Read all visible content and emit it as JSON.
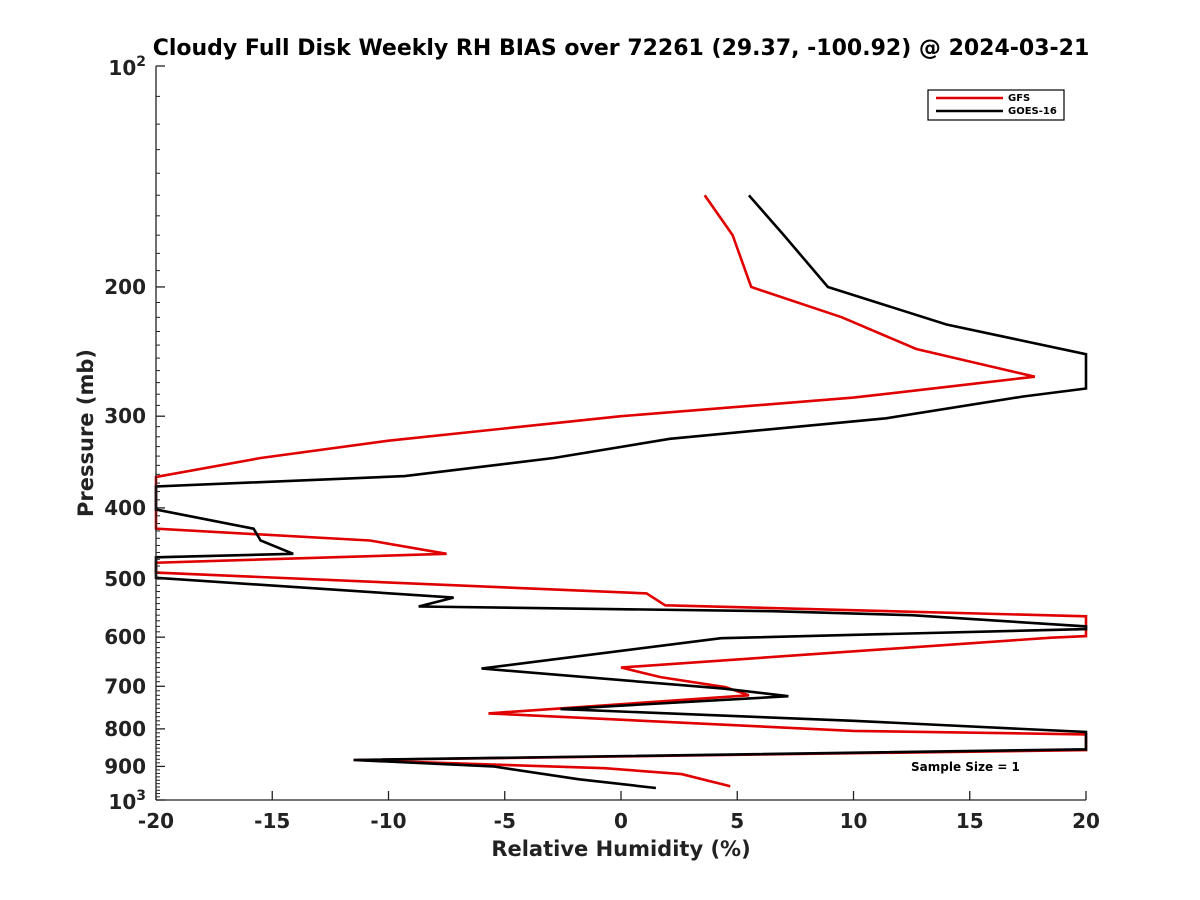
{
  "chart_data": {
    "type": "line",
    "title": "Cloudy Full Disk Weekly RH BIAS over 72261 (29.37, -100.92) @ 2024-03-21",
    "xlabel": "Relative Humidity (%)",
    "ylabel": "Pressure (mb)",
    "xlim": [
      -20,
      20
    ],
    "ylim": [
      100,
      1000
    ],
    "yscale": "log",
    "y_reversed": true,
    "x_ticks": [
      -20,
      -15,
      -10,
      -5,
      0,
      5,
      10,
      15,
      20
    ],
    "x_tick_labels": [
      "-20",
      "-15",
      "-10",
      "-5",
      "0",
      "5",
      "10",
      "15",
      "20"
    ],
    "y_ticks": [
      200,
      300,
      400,
      500,
      600,
      700,
      800,
      900
    ],
    "y_tick_labels": [
      "200",
      "300",
      "400",
      "500",
      "600",
      "700",
      "800",
      "900"
    ],
    "y_decade_labels": [
      {
        "value": 100,
        "base": "10",
        "exp": "2"
      },
      {
        "value": 1000,
        "base": "10",
        "exp": "3"
      }
    ],
    "legend_position": "top-right",
    "annotation": "Sample Size = 1",
    "series": [
      {
        "name": "GFS",
        "color": "#e00000",
        "points": [
          {
            "x": 3.6,
            "p": 150
          },
          {
            "x": 4.8,
            "p": 170
          },
          {
            "x": 5.6,
            "p": 200
          },
          {
            "x": 9.5,
            "p": 220
          },
          {
            "x": 12.7,
            "p": 243
          },
          {
            "x": 17.8,
            "p": 265
          },
          {
            "x": 10.0,
            "p": 283
          },
          {
            "x": 0.0,
            "p": 300
          },
          {
            "x": -10.0,
            "p": 324
          },
          {
            "x": -15.5,
            "p": 342
          },
          {
            "x": -20.0,
            "p": 363
          },
          {
            "x": -20.0,
            "p": 427
          },
          {
            "x": -10.8,
            "p": 443
          },
          {
            "x": -7.5,
            "p": 462
          },
          {
            "x": -20.0,
            "p": 475
          },
          {
            "x": -20.0,
            "p": 490
          },
          {
            "x": 1.1,
            "p": 523
          },
          {
            "x": 1.9,
            "p": 543
          },
          {
            "x": 20.0,
            "p": 562
          },
          {
            "x": 20.0,
            "p": 598
          },
          {
            "x": 18.5,
            "p": 601
          },
          {
            "x": 0.0,
            "p": 660
          },
          {
            "x": 1.7,
            "p": 680
          },
          {
            "x": 4.5,
            "p": 702
          },
          {
            "x": 5.5,
            "p": 720
          },
          {
            "x": -5.7,
            "p": 762
          },
          {
            "x": 10.0,
            "p": 805
          },
          {
            "x": 20.0,
            "p": 814
          },
          {
            "x": 20.0,
            "p": 855
          },
          {
            "x": -11.5,
            "p": 882
          },
          {
            "x": -0.7,
            "p": 905
          },
          {
            "x": 2.6,
            "p": 922
          },
          {
            "x": 4.7,
            "p": 958
          }
        ]
      },
      {
        "name": "GOES-16",
        "color": "#000000",
        "points": [
          {
            "x": 5.5,
            "p": 150
          },
          {
            "x": 7.0,
            "p": 170
          },
          {
            "x": 8.9,
            "p": 200
          },
          {
            "x": 14.0,
            "p": 225
          },
          {
            "x": 20.0,
            "p": 247
          },
          {
            "x": 20.0,
            "p": 275
          },
          {
            "x": 17.3,
            "p": 282
          },
          {
            "x": 11.4,
            "p": 302
          },
          {
            "x": 2.1,
            "p": 322
          },
          {
            "x": -2.9,
            "p": 342
          },
          {
            "x": -9.3,
            "p": 362
          },
          {
            "x": -20.0,
            "p": 374
          },
          {
            "x": -20.0,
            "p": 402
          },
          {
            "x": -15.8,
            "p": 427
          },
          {
            "x": -15.5,
            "p": 443
          },
          {
            "x": -14.1,
            "p": 462
          },
          {
            "x": -20.0,
            "p": 467
          },
          {
            "x": -20.0,
            "p": 498
          },
          {
            "x": -7.2,
            "p": 530
          },
          {
            "x": -8.7,
            "p": 545
          },
          {
            "x": 6.5,
            "p": 553
          },
          {
            "x": 12.5,
            "p": 560
          },
          {
            "x": 20.0,
            "p": 580
          },
          {
            "x": 20.0,
            "p": 585
          },
          {
            "x": 4.3,
            "p": 602
          },
          {
            "x": -6.0,
            "p": 662
          },
          {
            "x": 4.4,
            "p": 705
          },
          {
            "x": 7.2,
            "p": 722
          },
          {
            "x": -2.6,
            "p": 752
          },
          {
            "x": 10.0,
            "p": 780
          },
          {
            "x": 20.0,
            "p": 808
          },
          {
            "x": 20.0,
            "p": 853
          },
          {
            "x": -11.5,
            "p": 882
          },
          {
            "x": -5.5,
            "p": 900
          },
          {
            "x": -1.8,
            "p": 937
          },
          {
            "x": 1.5,
            "p": 963
          }
        ]
      }
    ]
  }
}
